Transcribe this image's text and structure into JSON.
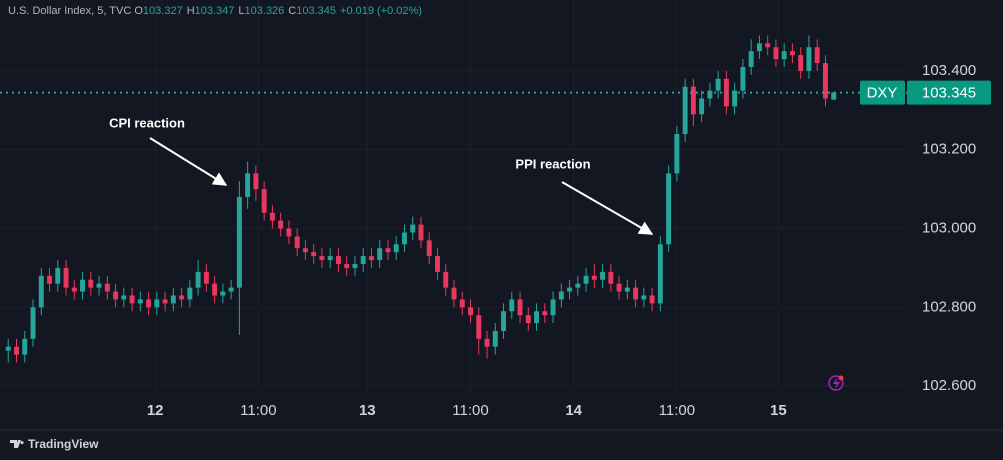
{
  "chart_data": {
    "type": "candlestick",
    "title": "U.S. Dollar Index, 5, TVC",
    "ohlc_prefixes": [
      "O",
      "H",
      "L",
      "C"
    ],
    "change_label": "+0.019 (+0.02%)",
    "symbol": "DXY",
    "brand": "TradingView",
    "up_color": "#26a69a",
    "down_color": "#e8385f",
    "grid": true,
    "annotations": [
      {
        "text": "CPI reaction"
      },
      {
        "text": "PPI reaction"
      }
    ],
    "xlim": [
      -1,
      109
    ],
    "ylim": [
      102.58,
      103.58
    ],
    "xticks": [
      {
        "value": 17.8,
        "label": "12"
      },
      {
        "value": 30.3,
        "label": "11:00"
      },
      {
        "value": 43.5,
        "label": "13"
      },
      {
        "value": 56,
        "label": "11:00"
      },
      {
        "value": 68.5,
        "label": "14"
      },
      {
        "value": 81,
        "label": "11:00"
      },
      {
        "value": 93.3,
        "label": "15"
      }
    ],
    "yticks": [
      {
        "value": 102.6,
        "label": "102.600"
      },
      {
        "value": 102.8,
        "label": "102.800"
      },
      {
        "value": 103.0,
        "label": "103.000"
      },
      {
        "value": 103.2,
        "label": "103.200"
      },
      {
        "value": 103.4,
        "label": "103.400"
      }
    ],
    "x": [
      0,
      1,
      2,
      3,
      4,
      5,
      6,
      7,
      8,
      9,
      10,
      11,
      12,
      13,
      14,
      15,
      16,
      17,
      18,
      19,
      20,
      21,
      22,
      23,
      24,
      25,
      26,
      27,
      28,
      29,
      30,
      31,
      32,
      33,
      34,
      35,
      36,
      37,
      38,
      39,
      40,
      41,
      42,
      43,
      44,
      45,
      46,
      47,
      48,
      49,
      50,
      51,
      52,
      53,
      54,
      55,
      56,
      57,
      58,
      59,
      60,
      61,
      62,
      63,
      64,
      65,
      66,
      67,
      68,
      69,
      70,
      71,
      72,
      73,
      74,
      75,
      76,
      77,
      78,
      79,
      80,
      81,
      82,
      83,
      84,
      85,
      86,
      87,
      88,
      89,
      90,
      91,
      92,
      93,
      94,
      95,
      96,
      97,
      98,
      99,
      100
    ],
    "open": [
      102.69,
      102.7,
      102.68,
      102.72,
      102.8,
      102.88,
      102.86,
      102.9,
      102.85,
      102.84,
      102.87,
      102.85,
      102.86,
      102.84,
      102.82,
      102.83,
      102.81,
      102.82,
      102.8,
      102.82,
      102.81,
      102.83,
      102.82,
      102.85,
      102.89,
      102.86,
      102.83,
      102.84,
      102.85,
      103.08,
      103.14,
      103.1,
      103.04,
      103.02,
      103.0,
      102.98,
      102.95,
      102.94,
      102.93,
      102.92,
      102.93,
      102.91,
      102.9,
      102.91,
      102.93,
      102.92,
      102.95,
      102.94,
      102.96,
      102.99,
      103.01,
      102.97,
      102.93,
      102.89,
      102.85,
      102.82,
      102.8,
      102.78,
      102.72,
      102.7,
      102.74,
      102.79,
      102.82,
      102.78,
      102.76,
      102.79,
      102.78,
      102.82,
      102.84,
      102.85,
      102.86,
      102.88,
      102.87,
      102.89,
      102.86,
      102.84,
      102.85,
      102.82,
      102.83,
      102.81,
      102.96,
      103.14,
      103.24,
      103.36,
      103.29,
      103.33,
      103.35,
      103.38,
      103.31,
      103.35,
      103.41,
      103.45,
      103.47,
      103.46,
      103.43,
      103.45,
      103.44,
      103.4,
      103.46,
      103.42,
      103.327
    ],
    "high": [
      102.72,
      102.72,
      102.74,
      102.82,
      102.9,
      102.9,
      102.92,
      102.92,
      102.87,
      102.89,
      102.89,
      102.88,
      102.88,
      102.86,
      102.85,
      102.85,
      102.84,
      102.84,
      102.84,
      102.84,
      102.85,
      102.85,
      102.87,
      102.92,
      102.91,
      102.88,
      102.86,
      102.87,
      103.12,
      103.17,
      103.16,
      103.12,
      103.06,
      103.04,
      103.02,
      103.0,
      102.97,
      102.96,
      102.95,
      102.95,
      102.95,
      102.93,
      102.93,
      102.95,
      102.95,
      102.97,
      102.97,
      102.98,
      103.01,
      103.03,
      103.03,
      102.99,
      102.95,
      102.91,
      102.87,
      102.84,
      102.82,
      102.8,
      102.74,
      102.76,
      102.81,
      102.84,
      102.84,
      102.8,
      102.81,
      102.81,
      102.84,
      102.86,
      102.87,
      102.88,
      102.9,
      102.91,
      102.91,
      102.91,
      102.88,
      102.87,
      102.87,
      102.85,
      102.85,
      102.98,
      103.16,
      103.26,
      103.38,
      103.38,
      103.35,
      103.37,
      103.4,
      103.4,
      103.37,
      103.43,
      103.48,
      103.49,
      103.49,
      103.48,
      103.47,
      103.47,
      103.46,
      103.49,
      103.48,
      103.44,
      103.347
    ],
    "low": [
      102.66,
      102.66,
      102.66,
      102.7,
      102.78,
      102.84,
      102.84,
      102.83,
      102.82,
      102.82,
      102.83,
      102.83,
      102.82,
      102.8,
      102.8,
      102.79,
      102.79,
      102.78,
      102.78,
      102.79,
      102.79,
      102.8,
      102.8,
      102.83,
      102.84,
      102.81,
      102.81,
      102.82,
      102.73,
      103.05,
      103.07,
      103.02,
      103.0,
      102.98,
      102.96,
      102.93,
      102.92,
      102.91,
      102.9,
      102.9,
      102.89,
      102.88,
      102.88,
      102.89,
      102.9,
      102.9,
      102.92,
      102.92,
      102.94,
      102.97,
      102.95,
      102.91,
      102.87,
      102.83,
      102.8,
      102.78,
      102.76,
      102.68,
      102.67,
      102.68,
      102.72,
      102.77,
      102.76,
      102.74,
      102.74,
      102.76,
      102.76,
      102.8,
      102.82,
      102.83,
      102.84,
      102.85,
      102.85,
      102.84,
      102.82,
      102.82,
      102.8,
      102.8,
      102.79,
      102.79,
      102.94,
      103.12,
      103.22,
      103.26,
      103.27,
      103.31,
      103.33,
      103.29,
      103.29,
      103.33,
      103.39,
      103.43,
      103.44,
      103.41,
      103.41,
      103.42,
      103.38,
      103.38,
      103.4,
      103.31,
      103.326
    ],
    "close": [
      102.7,
      102.68,
      102.72,
      102.8,
      102.88,
      102.86,
      102.9,
      102.85,
      102.84,
      102.87,
      102.85,
      102.86,
      102.84,
      102.82,
      102.83,
      102.81,
      102.82,
      102.8,
      102.82,
      102.81,
      102.83,
      102.82,
      102.85,
      102.89,
      102.86,
      102.83,
      102.84,
      102.85,
      103.08,
      103.14,
      103.1,
      103.04,
      103.02,
      103.0,
      102.98,
      102.95,
      102.94,
      102.93,
      102.92,
      102.93,
      102.91,
      102.9,
      102.91,
      102.93,
      102.92,
      102.95,
      102.94,
      102.96,
      102.99,
      103.01,
      102.97,
      102.93,
      102.89,
      102.85,
      102.82,
      102.8,
      102.78,
      102.72,
      102.7,
      102.74,
      102.79,
      102.82,
      102.78,
      102.76,
      102.79,
      102.78,
      102.82,
      102.84,
      102.85,
      102.86,
      102.88,
      102.87,
      102.89,
      102.86,
      102.84,
      102.85,
      102.82,
      102.83,
      102.81,
      102.96,
      103.14,
      103.24,
      103.36,
      103.29,
      103.33,
      103.35,
      103.38,
      103.31,
      103.35,
      103.41,
      103.45,
      103.47,
      103.46,
      103.43,
      103.45,
      103.44,
      103.4,
      103.46,
      103.42,
      103.33,
      103.345
    ]
  }
}
